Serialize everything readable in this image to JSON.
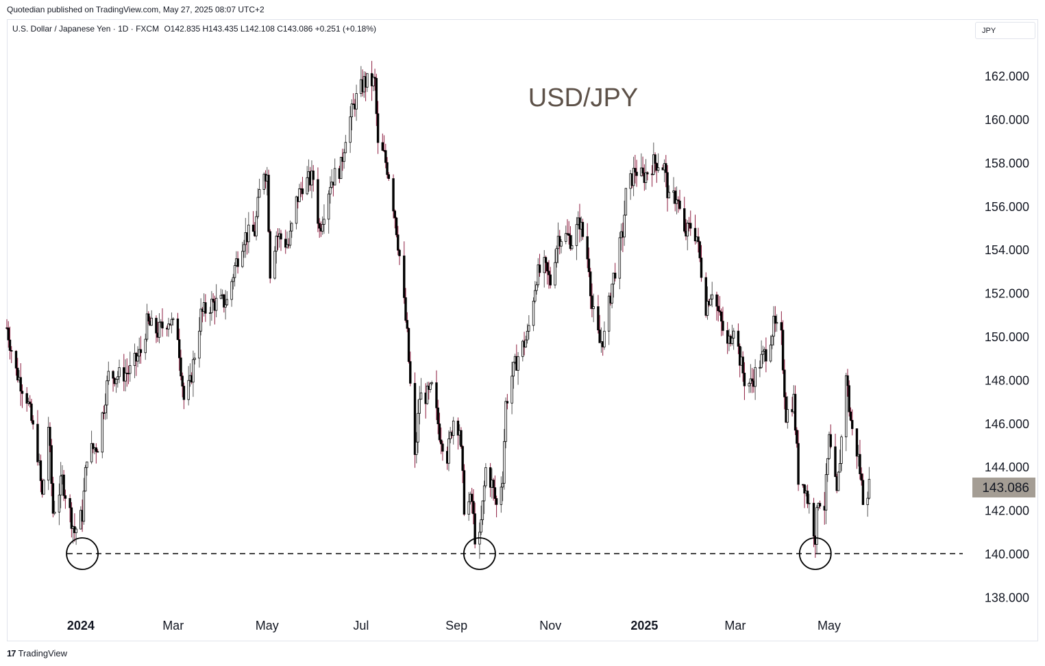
{
  "header": {
    "published": "Quotedian published on TradingView.com, May 27, 2025 08:07 UTC+2",
    "symbol": "U.S. Dollar / Japanese Yen · 1D · FXCM",
    "ohlc": "O142.835  H143.435  L142.108  C143.086  +0.251 (+0.18%)",
    "currency": "JPY"
  },
  "footer": {
    "brand": "TradingView",
    "logo": "17"
  },
  "colors": {
    "up": "#ffffff",
    "down": "#000000",
    "wick_down": "#8b1a3d",
    "wick_up": "#555555",
    "price_tag": "#a49d94",
    "title": "#5d5148"
  },
  "chart_data": {
    "type": "candlestick",
    "title": "USD/JPY",
    "price_label": "143.086",
    "support_level": 140,
    "ylim": [
      137,
      163.5
    ],
    "y_ticks": [
      "138.000",
      "140.000",
      "142.000",
      "144.000",
      "146.000",
      "148.000",
      "150.000",
      "152.000",
      "154.000",
      "156.000",
      "158.000",
      "160.000",
      "162.000"
    ],
    "y_tick_values": [
      138,
      140,
      142,
      144,
      146,
      148,
      150,
      152,
      154,
      156,
      158,
      160,
      162
    ],
    "x_ticks": [
      {
        "label": "2024",
        "date": "2024-01-01",
        "bold": true
      },
      {
        "label": "Mar",
        "date": "2024-03-01",
        "bold": false
      },
      {
        "label": "May",
        "date": "2024-05-01",
        "bold": false
      },
      {
        "label": "Jul",
        "date": "2024-07-01",
        "bold": false
      },
      {
        "label": "Sep",
        "date": "2024-09-01",
        "bold": false
      },
      {
        "label": "Nov",
        "date": "2024-11-01",
        "bold": false
      },
      {
        "label": "2025",
        "date": "2025-01-01",
        "bold": true
      },
      {
        "label": "Mar",
        "date": "2025-03-01",
        "bold": false
      },
      {
        "label": "May",
        "date": "2025-05-01",
        "bold": false
      }
    ],
    "xlim": [
      "2023-11-14",
      "2025-07-29"
    ],
    "circled_lows": [
      "2024-01-02",
      "2024-09-16",
      "2025-04-22"
    ],
    "close_series": [
      [
        "2023-11-14",
        150.4
      ],
      [
        "2023-11-20",
        148.4
      ],
      [
        "2023-11-27",
        147.2
      ],
      [
        "2023-12-04",
        144.6
      ],
      [
        "2023-12-07",
        142.6
      ],
      [
        "2023-12-11",
        145.9
      ],
      [
        "2023-12-14",
        141.9
      ],
      [
        "2023-12-20",
        143.4
      ],
      [
        "2023-12-28",
        141.0
      ],
      [
        "2024-01-02",
        141.8
      ],
      [
        "2024-01-05",
        144.6
      ],
      [
        "2024-01-12",
        145.0
      ],
      [
        "2024-01-19",
        148.2
      ],
      [
        "2024-01-26",
        148.2
      ],
      [
        "2024-02-02",
        148.4
      ],
      [
        "2024-02-09",
        149.3
      ],
      [
        "2024-02-13",
        150.6
      ],
      [
        "2024-02-20",
        150.2
      ],
      [
        "2024-02-27",
        150.8
      ],
      [
        "2024-03-04",
        150.1
      ],
      [
        "2024-03-08",
        147.1
      ],
      [
        "2024-03-12",
        147.8
      ],
      [
        "2024-03-15",
        149.2
      ],
      [
        "2024-03-19",
        151.0
      ],
      [
        "2024-03-26",
        151.5
      ],
      [
        "2024-04-05",
        151.6
      ],
      [
        "2024-04-10",
        153.2
      ],
      [
        "2024-04-16",
        154.6
      ],
      [
        "2024-04-23",
        154.8
      ],
      [
        "2024-04-26",
        156.6
      ],
      [
        "2024-04-29",
        157.7
      ],
      [
        "2024-05-01",
        157.4
      ],
      [
        "2024-05-03",
        153.0
      ],
      [
        "2024-05-07",
        154.7
      ],
      [
        "2024-05-15",
        154.2
      ],
      [
        "2024-05-20",
        156.2
      ],
      [
        "2024-05-24",
        157.0
      ],
      [
        "2024-05-31",
        157.3
      ],
      [
        "2024-06-04",
        154.9
      ],
      [
        "2024-06-11",
        157.1
      ],
      [
        "2024-06-18",
        157.8
      ],
      [
        "2024-06-21",
        159.3
      ],
      [
        "2024-06-27",
        160.8
      ],
      [
        "2024-07-03",
        161.7
      ],
      [
        "2024-07-10",
        161.7
      ],
      [
        "2024-07-12",
        158.7
      ],
      [
        "2024-07-16",
        158.3
      ],
      [
        "2024-07-19",
        157.5
      ],
      [
        "2024-07-23",
        155.6
      ],
      [
        "2024-07-26",
        153.7
      ],
      [
        "2024-07-31",
        150.0
      ],
      [
        "2024-08-05",
        144.3
      ],
      [
        "2024-08-08",
        147.2
      ],
      [
        "2024-08-14",
        147.3
      ],
      [
        "2024-08-16",
        147.6
      ],
      [
        "2024-08-21",
        145.6
      ],
      [
        "2024-08-26",
        144.5
      ],
      [
        "2024-08-30",
        146.2
      ],
      [
        "2024-09-03",
        145.8
      ],
      [
        "2024-09-06",
        142.2
      ],
      [
        "2024-09-11",
        142.4
      ],
      [
        "2024-09-13",
        140.8
      ],
      [
        "2024-09-16",
        140.6
      ],
      [
        "2024-09-18",
        142.2
      ],
      [
        "2024-09-20",
        143.9
      ],
      [
        "2024-09-24",
        143.2
      ],
      [
        "2024-09-27",
        142.2
      ],
      [
        "2024-10-01",
        143.6
      ],
      [
        "2024-10-03",
        146.9
      ],
      [
        "2024-10-07",
        148.2
      ],
      [
        "2024-10-11",
        149.1
      ],
      [
        "2024-10-17",
        150.0
      ],
      [
        "2024-10-23",
        152.8
      ],
      [
        "2024-10-28",
        153.2
      ],
      [
        "2024-11-01",
        152.5
      ],
      [
        "2024-11-06",
        154.6
      ],
      [
        "2024-11-12",
        154.6
      ],
      [
        "2024-11-15",
        154.4
      ],
      [
        "2024-11-20",
        155.3
      ],
      [
        "2024-11-26",
        153.3
      ],
      [
        "2024-11-28",
        151.3
      ],
      [
        "2024-12-03",
        149.7
      ],
      [
        "2024-12-06",
        150.0
      ],
      [
        "2024-12-11",
        152.4
      ],
      [
        "2024-12-18",
        154.8
      ],
      [
        "2024-12-20",
        156.5
      ],
      [
        "2024-12-26",
        157.7
      ],
      [
        "2024-12-31",
        157.3
      ],
      [
        "2025-01-07",
        158.0
      ],
      [
        "2025-01-10",
        158.0
      ],
      [
        "2025-01-14",
        157.8
      ],
      [
        "2025-01-17",
        156.2
      ],
      [
        "2025-01-22",
        156.5
      ],
      [
        "2025-01-27",
        154.6
      ],
      [
        "2025-01-31",
        155.1
      ],
      [
        "2025-02-04",
        154.6
      ],
      [
        "2025-02-10",
        151.4
      ],
      [
        "2025-02-14",
        152.2
      ],
      [
        "2025-02-18",
        151.1
      ],
      [
        "2025-02-24",
        149.5
      ],
      [
        "2025-02-28",
        150.6
      ],
      [
        "2025-03-04",
        149.0
      ],
      [
        "2025-03-07",
        148.0
      ],
      [
        "2025-03-11",
        147.8
      ],
      [
        "2025-03-17",
        148.8
      ],
      [
        "2025-03-21",
        149.3
      ],
      [
        "2025-03-26",
        150.5
      ],
      [
        "2025-03-31",
        149.9
      ],
      [
        "2025-04-03",
        146.4
      ],
      [
        "2025-04-08",
        147.1
      ],
      [
        "2025-04-11",
        143.5
      ],
      [
        "2025-04-15",
        143.2
      ],
      [
        "2025-04-18",
        142.2
      ],
      [
        "2025-04-22",
        140.8
      ],
      [
        "2025-04-24",
        142.6
      ],
      [
        "2025-04-28",
        142.2
      ],
      [
        "2025-05-01",
        145.2
      ],
      [
        "2025-05-06",
        142.6
      ],
      [
        "2025-05-09",
        145.3
      ],
      [
        "2025-05-12",
        148.4
      ],
      [
        "2025-05-14",
        146.7
      ],
      [
        "2025-05-16",
        145.6
      ],
      [
        "2025-05-20",
        144.4
      ],
      [
        "2025-05-23",
        142.6
      ],
      [
        "2025-05-27",
        143.1
      ]
    ]
  }
}
